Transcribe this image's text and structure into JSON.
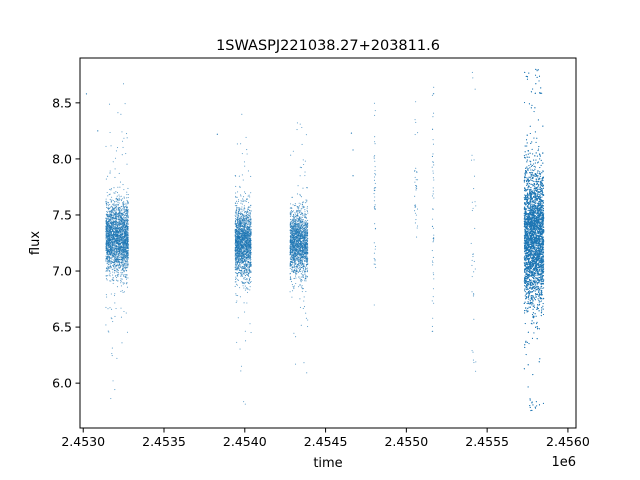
{
  "chart_data": {
    "type": "scatter",
    "title": "1SWASPJ221038.27+203811.6",
    "xlabel": "time",
    "ylabel": "flux",
    "x_offset_label": "1e6",
    "xlim": [
      2.45298,
      2.45605
    ],
    "ylim": [
      5.6,
      8.9
    ],
    "x_ticks": [
      2.453,
      2.4535,
      2.454,
      2.4545,
      2.455,
      2.4555,
      2.456
    ],
    "x_tick_labels": [
      "2.4530",
      "2.4535",
      "2.4540",
      "2.4545",
      "2.4550",
      "2.4555",
      "2.4560"
    ],
    "y_ticks": [
      6.0,
      6.5,
      7.0,
      7.5,
      8.0,
      8.5
    ],
    "y_tick_labels": [
      "6.0",
      "6.5",
      "7.0",
      "7.5",
      "8.0",
      "8.5"
    ],
    "grid": false,
    "point_color": "#1f77b4",
    "clusters": [
      {
        "x_min": 2.45314,
        "x_max": 2.45328,
        "y_center": 7.3,
        "y_spread": 0.16,
        "y_min": 5.85,
        "y_max": 8.75,
        "count": 2600
      },
      {
        "x_min": 2.45394,
        "x_max": 2.45404,
        "y_center": 7.25,
        "y_spread": 0.15,
        "y_min": 5.8,
        "y_max": 8.5,
        "count": 2000
      },
      {
        "x_min": 2.45428,
        "x_max": 2.45439,
        "y_center": 7.25,
        "y_spread": 0.14,
        "y_min": 5.9,
        "y_max": 8.4,
        "count": 1800
      },
      {
        "x_min": 2.4548,
        "x_max": 2.45481,
        "y_center": 7.7,
        "y_spread": 0.4,
        "y_min": 6.6,
        "y_max": 8.7,
        "count": 45
      },
      {
        "x_min": 2.45505,
        "x_max": 2.45507,
        "y_center": 7.8,
        "y_spread": 0.3,
        "y_min": 7.1,
        "y_max": 8.6,
        "count": 35
      },
      {
        "x_min": 2.45516,
        "x_max": 2.45517,
        "y_center": 7.5,
        "y_spread": 0.5,
        "y_min": 6.45,
        "y_max": 8.65,
        "count": 55
      },
      {
        "x_min": 2.4554,
        "x_max": 2.45543,
        "y_center": 7.1,
        "y_spread": 0.6,
        "y_min": 6.1,
        "y_max": 8.78,
        "count": 35
      },
      {
        "x_min": 2.45573,
        "x_max": 2.45585,
        "y_center": 7.3,
        "y_spread": 0.3,
        "y_min": 5.75,
        "y_max": 8.8,
        "count": 9000
      }
    ],
    "isolated_points": [
      {
        "x": 2.45302,
        "y": 8.58
      },
      {
        "x": 2.45309,
        "y": 8.25
      },
      {
        "x": 2.45383,
        "y": 8.22
      },
      {
        "x": 2.45466,
        "y": 8.23
      },
      {
        "x": 2.45467,
        "y": 7.85
      },
      {
        "x": 2.45467,
        "y": 8.08
      }
    ]
  }
}
